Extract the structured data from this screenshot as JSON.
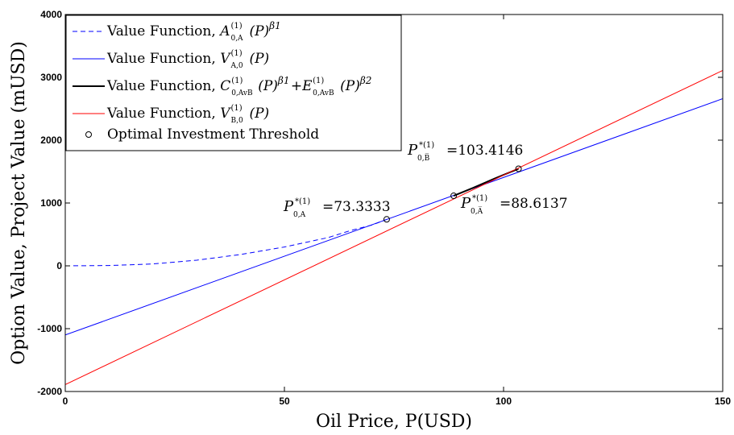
{
  "chart_data": {
    "type": "line",
    "xlabel": "Oil Price, P(USD)",
    "ylabel": "Option Value, Project Value (mUSD)",
    "xlim": [
      0,
      150
    ],
    "ylim": [
      -2000,
      4000
    ],
    "x_ticks": [
      0,
      50,
      100,
      150
    ],
    "y_ticks": [
      -2000,
      -1000,
      0,
      1000,
      2000,
      3000,
      4000
    ],
    "x_tick_labels": [
      "0",
      "50",
      "100",
      "150"
    ],
    "y_tick_labels": [
      "-2000",
      "-1000",
      "0",
      "1000",
      "2000",
      "3000",
      "4000"
    ],
    "grid": false,
    "legend_position": "top-left",
    "series": [
      {
        "name": "Value Function, A_{0,A}^{(1)}(P)^{β1}",
        "color": "#0000ff",
        "style": "dashed",
        "x": [
          0,
          10,
          20,
          30,
          40,
          50,
          60,
          65,
          70,
          73.3333
        ],
        "y": [
          0,
          5,
          30,
          90,
          180,
          300,
          450,
          560,
          650,
          740
        ]
      },
      {
        "name": "Value Function, V_{A,0}^{(1)}(P)",
        "color": "#0000ff",
        "style": "solid",
        "x": [
          0,
          150
        ],
        "y": [
          -1100,
          2660
        ]
      },
      {
        "name": "Value Function, C_{0,AvB}^{(1)}(P)^{β1} + E_{0,AvB}^{(1)}(P)^{β2}",
        "color": "#000000",
        "style": "solid",
        "x": [
          88.6137,
          93,
          98,
          103.4146
        ],
        "y": [
          1115,
          1240,
          1390,
          1545
        ]
      },
      {
        "name": "Value Function, V_{B,0}^{(1)}(P)",
        "color": "#ff0000",
        "style": "solid",
        "x": [
          0,
          150
        ],
        "y": [
          -1890,
          3110
        ]
      }
    ],
    "markers": {
      "name": "Optimal Investment Threshold",
      "points": [
        {
          "x": 73.3333,
          "y": 740
        },
        {
          "x": 88.6137,
          "y": 1115
        },
        {
          "x": 103.4146,
          "y": 1545
        }
      ]
    },
    "annotations": [
      {
        "id": "a1",
        "base": "P",
        "sup": "*(1)",
        "sub": "0,A",
        "value": "=73.3333"
      },
      {
        "id": "a2",
        "base": "P",
        "sup": "*(1)",
        "sub": "0,A̅",
        "value": "=88.6137"
      },
      {
        "id": "a3",
        "base": "P",
        "sup": "*(1)",
        "sub": "0,B̅",
        "value": "=103.4146"
      }
    ]
  },
  "legend": {
    "items": [
      {
        "prefix": "Value Function, ",
        "base": "A",
        "sup": "(1)",
        "sub": "0,A",
        "suffix": "(P)",
        "pow": "β",
        "pow_sub": "1"
      },
      {
        "prefix": "Value Function, ",
        "base": "V",
        "sup": "(1)",
        "sub": "A,0",
        "suffix": "(P)",
        "pow": "",
        "pow_sub": ""
      },
      {
        "prefix": "Value Function, ",
        "base": "C",
        "sup": "(1)",
        "sub": "0,AvB",
        "suffix": "(P)",
        "pow": "β",
        "pow_sub": "1",
        "plus": " + ",
        "base2": "E",
        "sup2": "(1)",
        "sub2": "0,AvB",
        "suffix2": "(P)",
        "pow2": "β",
        "pow2_sub": "2"
      },
      {
        "prefix": "Value Function, ",
        "base": "V",
        "sup": "(1)",
        "sub": "B,0",
        "suffix": "(P)",
        "pow": "",
        "pow_sub": ""
      },
      {
        "prefix": "Optimal Investment Threshold"
      }
    ]
  }
}
